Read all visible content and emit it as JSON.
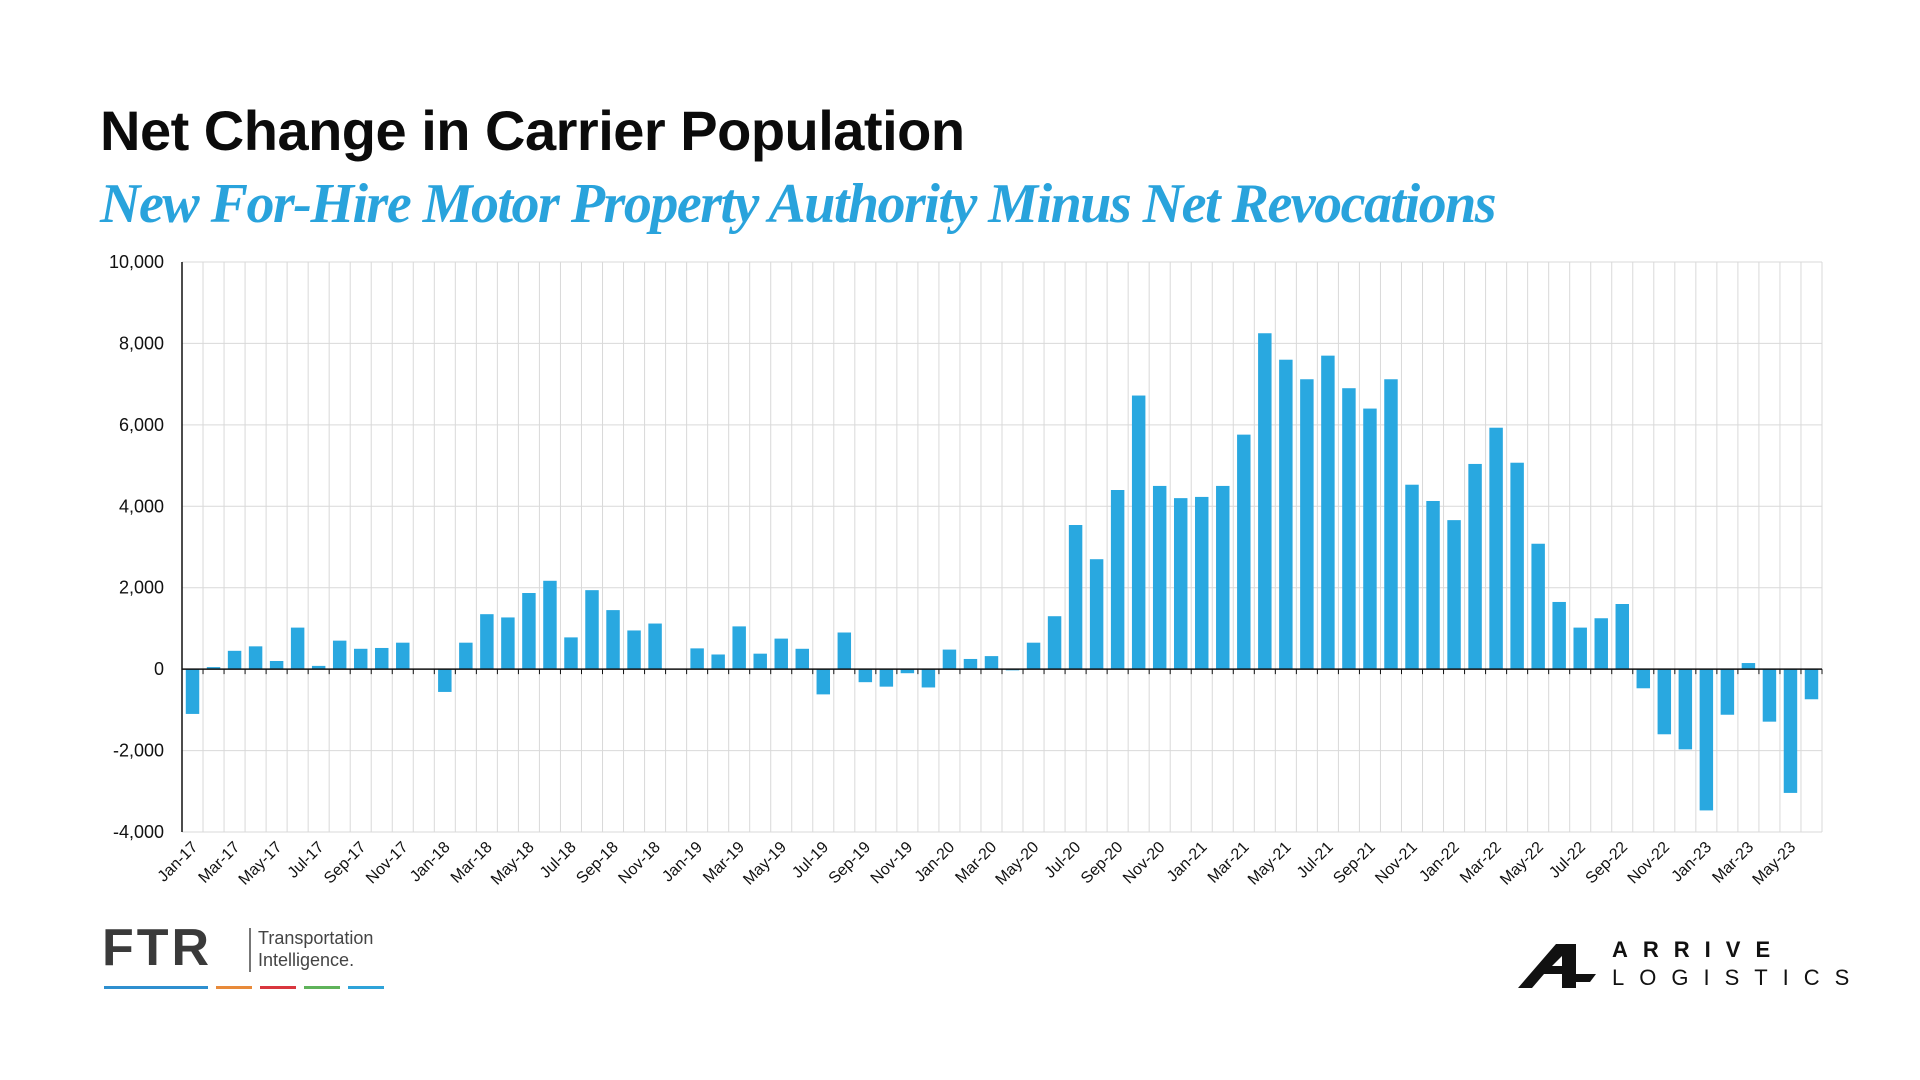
{
  "header": {
    "title": "Net Change in Carrier Population",
    "subtitle": "New For-Hire Motor Property Authority Minus Net Revocations"
  },
  "colors": {
    "bar": "#29a8e0",
    "subtitle": "#29a3dc",
    "grid": "#d9d9d9",
    "axis": "#111111"
  },
  "chart_data": {
    "type": "bar",
    "grid": true,
    "legend": "none",
    "ylim": [
      -4000,
      10000
    ],
    "yticks": [
      -4000,
      -2000,
      0,
      2000,
      4000,
      6000,
      8000,
      10000
    ],
    "ytick_labels": [
      "-4,000",
      "-2,000",
      "0",
      "2,000",
      "4,000",
      "6,000",
      "8,000",
      "10,000"
    ],
    "categories": [
      "Jan-17",
      "Feb-17",
      "Mar-17",
      "Apr-17",
      "May-17",
      "Jun-17",
      "Jul-17",
      "Aug-17",
      "Sep-17",
      "Oct-17",
      "Nov-17",
      "Dec-17",
      "Jan-18",
      "Feb-18",
      "Mar-18",
      "Apr-18",
      "May-18",
      "Jun-18",
      "Jul-18",
      "Aug-18",
      "Sep-18",
      "Oct-18",
      "Nov-18",
      "Dec-18",
      "Jan-19",
      "Feb-19",
      "Mar-19",
      "Apr-19",
      "May-19",
      "Jun-19",
      "Jul-19",
      "Aug-19",
      "Sep-19",
      "Oct-19",
      "Nov-19",
      "Dec-19",
      "Jan-20",
      "Feb-20",
      "Mar-20",
      "Apr-20",
      "May-20",
      "Jun-20",
      "Jul-20",
      "Aug-20",
      "Sep-20",
      "Oct-20",
      "Nov-20",
      "Dec-20",
      "Jan-21",
      "Feb-21",
      "Mar-21",
      "Apr-21",
      "May-21",
      "Jun-21",
      "Jul-21",
      "Aug-21",
      "Sep-21",
      "Oct-21",
      "Nov-21",
      "Dec-21",
      "Jan-22",
      "Feb-22",
      "Mar-22",
      "Apr-22",
      "May-22",
      "Jun-22",
      "Jul-22",
      "Aug-22",
      "Sep-22",
      "Oct-22",
      "Nov-22",
      "Dec-22",
      "Jan-23",
      "Feb-23",
      "Mar-23",
      "Apr-23",
      "May-23",
      "Jun-23"
    ],
    "xtick_labels": [
      "Jan-17",
      "Mar-17",
      "May-17",
      "Jul-17",
      "Sep-17",
      "Nov-17",
      "Jan-18",
      "Mar-18",
      "May-18",
      "Jul-18",
      "Sep-18",
      "Nov-18",
      "Jan-19",
      "Mar-19",
      "May-19",
      "Jul-19",
      "Sep-19",
      "Nov-19",
      "Jan-20",
      "Mar-20",
      "May-20",
      "Jul-20",
      "Sep-20",
      "Nov-20",
      "Jan-21",
      "Mar-21",
      "May-21",
      "Jul-21",
      "Sep-21",
      "Nov-21",
      "Jan-22",
      "Mar-22",
      "May-22",
      "Jul-22",
      "Sep-22",
      "Nov-22",
      "Jan-23",
      "Mar-23",
      "May-23"
    ],
    "values": [
      -1100,
      50,
      450,
      560,
      200,
      1020,
      80,
      700,
      500,
      520,
      650,
      0,
      -560,
      650,
      1350,
      1270,
      1870,
      2170,
      780,
      1940,
      1450,
      950,
      1120,
      0,
      510,
      360,
      1050,
      380,
      750,
      500,
      -620,
      900,
      -320,
      -430,
      -100,
      -450,
      480,
      250,
      320,
      -30,
      650,
      1300,
      3540,
      2700,
      4400,
      6720,
      4500,
      4200,
      4230,
      4500,
      5760,
      8250,
      7600,
      7120,
      7700,
      6900,
      6400,
      7120,
      4530,
      4130,
      3660,
      5040,
      5930,
      5070,
      3080,
      1650,
      1020,
      1250,
      1600,
      -470,
      -1600,
      -1970,
      -3470,
      -1120,
      150,
      -1290,
      -3040,
      -740
    ]
  },
  "footer": {
    "ftr_letters": "FTR",
    "ftr_tagline_line1": "Transportation",
    "ftr_tagline_line2": "Intelligence.",
    "ftr_bar_colors": [
      "#2e8fcf",
      "#e88a3a",
      "#d9363e",
      "#5fb35a",
      "#2ea3d9"
    ],
    "arrive_line1": "ARRIVE",
    "arrive_line2": "LOGISTICS"
  }
}
